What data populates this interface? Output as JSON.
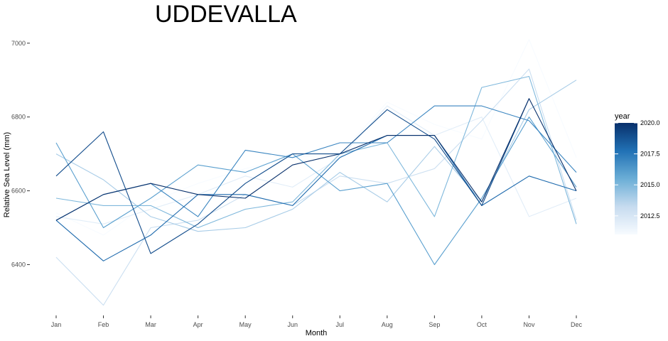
{
  "chart_data": {
    "type": "line",
    "title": "UDDEVALLA",
    "xlabel": "Month",
    "ylabel": "Relative Sea Level (mm)",
    "categories": [
      "Jan",
      "Feb",
      "Mar",
      "Apr",
      "May",
      "Jun",
      "Jul",
      "Aug",
      "Sep",
      "Oct",
      "Nov",
      "Dec"
    ],
    "ylim": [
      6270,
      7040
    ],
    "yticks": [
      6400,
      6600,
      6800,
      7000
    ],
    "grid": false,
    "legend": {
      "title": "year",
      "position": "right",
      "type": "colorbar",
      "range": [
        2011,
        2020
      ],
      "ticks": [
        "2012.5",
        "2015.0",
        "2017.5",
        "2020.0"
      ],
      "colors": [
        "#f7fbff",
        "#c6dbef",
        "#6baed6",
        "#2171b5",
        "#08306b"
      ]
    },
    "series": [
      {
        "year": 2011,
        "values": [
          6540,
          6480,
          6570,
          6620,
          6660,
          6690,
          6700,
          6840,
          6780,
          6740,
          7010,
          6690
        ]
      },
      {
        "year": 2012,
        "values": [
          6530,
          6510,
          6550,
          6590,
          6640,
          6610,
          6690,
          6830,
          6750,
          6800,
          6530,
          6580
        ]
      },
      {
        "year": 2013,
        "values": [
          6420,
          6290,
          6500,
          6520,
          6590,
          6560,
          6640,
          6620,
          6660,
          6790,
          6930,
          6520
        ]
      },
      {
        "year": 2014,
        "values": [
          6700,
          6630,
          6530,
          6490,
          6500,
          6550,
          6650,
          6570,
          6720,
          6570,
          6820,
          6900
        ]
      },
      {
        "year": 2015,
        "values": [
          6580,
          6560,
          6560,
          6500,
          6550,
          6570,
          6700,
          6730,
          6530,
          6880,
          6910,
          6510
        ]
      },
      {
        "year": 2016,
        "values": [
          6730,
          6500,
          6580,
          6670,
          6650,
          6700,
          6600,
          6620,
          6400,
          6580,
          6800,
          6610
        ]
      },
      {
        "year": 2017,
        "values": [
          6520,
          6590,
          6620,
          6530,
          6710,
          6690,
          6730,
          6730,
          6830,
          6830,
          6790,
          6650
        ]
      },
      {
        "year": 2018,
        "values": [
          6520,
          6410,
          6480,
          6590,
          6590,
          6560,
          6690,
          6750,
          6750,
          6560,
          6640,
          6600
        ]
      },
      {
        "year": 2019,
        "values": [
          6640,
          6760,
          6430,
          6510,
          6620,
          6700,
          6700,
          6820,
          6740,
          6560,
          6850,
          null
        ]
      },
      {
        "year": 2020,
        "values": [
          6520,
          6590,
          6620,
          6590,
          6580,
          6670,
          6700,
          6750,
          6750,
          6570,
          6850,
          6600
        ]
      }
    ]
  }
}
